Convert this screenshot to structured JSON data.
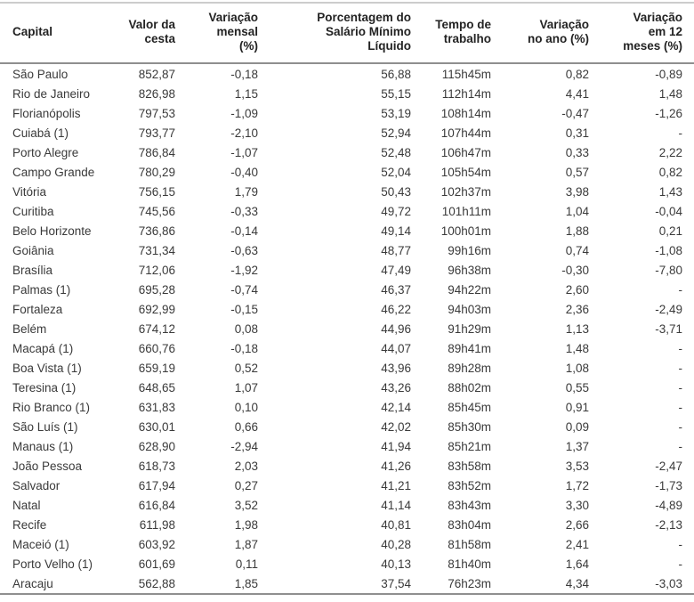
{
  "colors": {
    "background": "#ffffff",
    "text": "#3a3a3a",
    "header_text": "#232323",
    "top_border": "#cccccc",
    "header_separator": "#8f8f8f",
    "bottom_border": "#8f8f8f"
  },
  "chart_data": {
    "type": "table",
    "title": "",
    "columns": [
      {
        "label": "Capital",
        "align": "left"
      },
      {
        "label": "Valor da\ncesta",
        "align": "right"
      },
      {
        "label": "Variação\nmensal\n(%)",
        "align": "right"
      },
      {
        "label": "Porcentagem do\nSalário Mínimo\nLíquido",
        "align": "right"
      },
      {
        "label": "Tempo de\ntrabalho",
        "align": "right"
      },
      {
        "label": "Variação\nno ano (%)",
        "align": "right"
      },
      {
        "label": "Variação\nem 12\nmeses (%)",
        "align": "right"
      }
    ],
    "rows": [
      [
        "São Paulo",
        "852,87",
        "-0,18",
        "56,88",
        "115h45m",
        "0,82",
        "-0,89"
      ],
      [
        "Rio de Janeiro",
        "826,98",
        "1,15",
        "55,15",
        "112h14m",
        "4,41",
        "1,48"
      ],
      [
        "Florianópolis",
        "797,53",
        "-1,09",
        "53,19",
        "108h14m",
        "-0,47",
        "-1,26"
      ],
      [
        "Cuiabá (1)",
        "793,77",
        "-2,10",
        "52,94",
        "107h44m",
        "0,31",
        "-"
      ],
      [
        "Porto Alegre",
        "786,84",
        "-1,07",
        "52,48",
        "106h47m",
        "0,33",
        "2,22"
      ],
      [
        "Campo Grande",
        "780,29",
        "-0,40",
        "52,04",
        "105h54m",
        "0,57",
        "0,82"
      ],
      [
        "Vitória",
        "756,15",
        "1,79",
        "50,43",
        "102h37m",
        "3,98",
        "1,43"
      ],
      [
        "Curitiba",
        "745,56",
        "-0,33",
        "49,72",
        "101h11m",
        "1,04",
        "-0,04"
      ],
      [
        "Belo Horizonte",
        "736,86",
        "-0,14",
        "49,14",
        "100h01m",
        "1,88",
        "0,21"
      ],
      [
        "Goiânia",
        "731,34",
        "-0,63",
        "48,77",
        "99h16m",
        "0,74",
        "-1,08"
      ],
      [
        "Brasília",
        "712,06",
        "-1,92",
        "47,49",
        "96h38m",
        "-0,30",
        "-7,80"
      ],
      [
        "Palmas (1)",
        "695,28",
        "-0,74",
        "46,37",
        "94h22m",
        "2,60",
        "-"
      ],
      [
        "Fortaleza",
        "692,99",
        "-0,15",
        "46,22",
        "94h03m",
        "2,36",
        "-2,49"
      ],
      [
        "Belém",
        "674,12",
        "0,08",
        "44,96",
        "91h29m",
        "1,13",
        "-3,71"
      ],
      [
        "Macapá (1)",
        "660,76",
        "-0,18",
        "44,07",
        "89h41m",
        "1,48",
        "-"
      ],
      [
        "Boa Vista (1)",
        "659,19",
        "0,52",
        "43,96",
        "89h28m",
        "1,08",
        "-"
      ],
      [
        "Teresina (1)",
        "648,65",
        "1,07",
        "43,26",
        "88h02m",
        "0,55",
        "-"
      ],
      [
        "Rio Branco (1)",
        "631,83",
        "0,10",
        "42,14",
        "85h45m",
        "0,91",
        "-"
      ],
      [
        "São Luís (1)",
        "630,01",
        "0,66",
        "42,02",
        "85h30m",
        "0,09",
        "-"
      ],
      [
        "Manaus (1)",
        "628,90",
        "-2,94",
        "41,94",
        "85h21m",
        "1,37",
        "-"
      ],
      [
        "João Pessoa",
        "618,73",
        "2,03",
        "41,26",
        "83h58m",
        "3,53",
        "-2,47"
      ],
      [
        "Salvador",
        "617,94",
        "0,27",
        "41,21",
        "83h52m",
        "1,72",
        "-1,73"
      ],
      [
        "Natal",
        "616,84",
        "3,52",
        "41,14",
        "83h43m",
        "3,30",
        "-4,89"
      ],
      [
        "Recife",
        "611,98",
        "1,98",
        "40,81",
        "83h04m",
        "2,66",
        "-2,13"
      ],
      [
        "Maceió (1)",
        "603,92",
        "1,87",
        "40,28",
        "81h58m",
        "2,41",
        "-"
      ],
      [
        "Porto Velho (1)",
        "601,69",
        "0,11",
        "40,13",
        "81h40m",
        "1,64",
        "-"
      ],
      [
        "Aracaju",
        "562,88",
        "1,85",
        "37,54",
        "76h23m",
        "4,34",
        "-3,03"
      ]
    ]
  }
}
